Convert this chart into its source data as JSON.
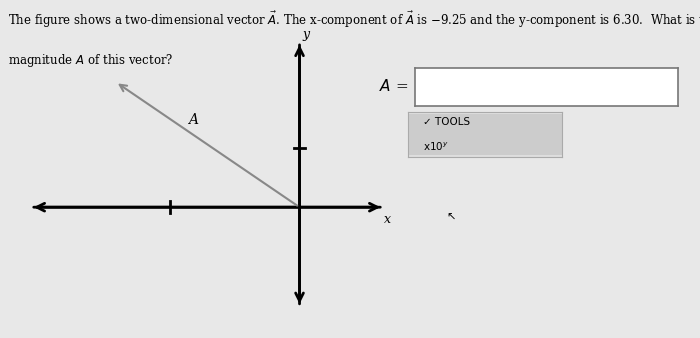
{
  "bg_color": "#e8e8e8",
  "axis_color": "#000000",
  "vector_color": "#888888",
  "vx": -9.25,
  "vy": 6.3,
  "axis_label_x": "x",
  "axis_label_y": "y",
  "vector_label": "A",
  "tools_symbol": "✔",
  "wrench_symbol": "⚒"
}
